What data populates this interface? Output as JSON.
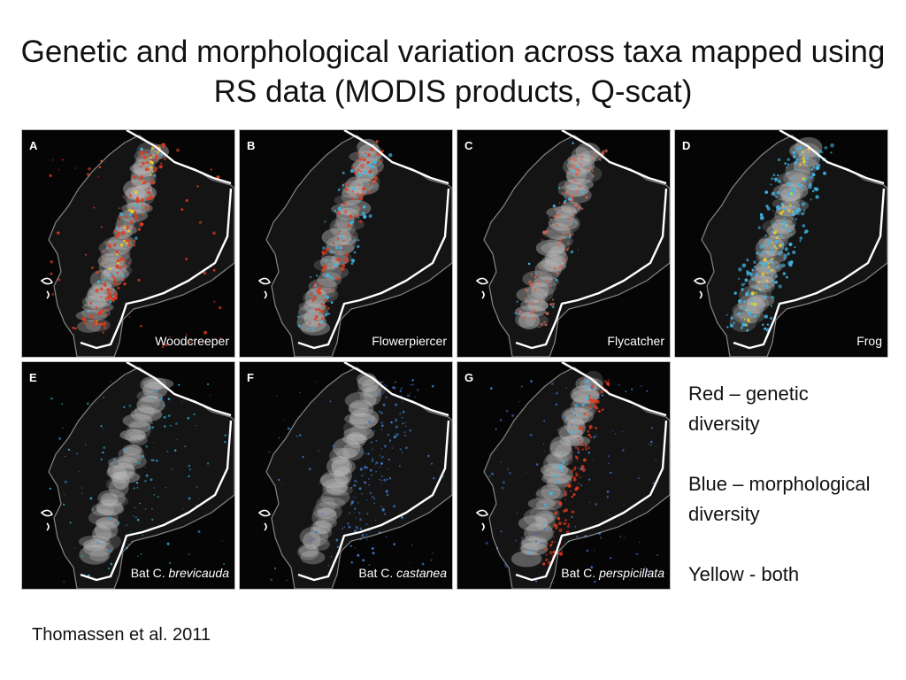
{
  "title": "Genetic and morphological variation across taxa mapped using RS data (MODIS products, Q-scat)",
  "colors": {
    "genetic": "#e23a1c",
    "morphological": "#3fb7e6",
    "both": "#f2d21a",
    "background": "#050505",
    "andes": "#bdbdbd"
  },
  "panels": [
    {
      "letter": "A",
      "label": "Woodcreeper",
      "label_prefix": "",
      "label_species": "",
      "highlight": "red"
    },
    {
      "letter": "B",
      "label": "Flowerpiercer",
      "label_prefix": "",
      "label_species": "",
      "highlight": "red-blue"
    },
    {
      "letter": "C",
      "label": "Flycatcher",
      "label_prefix": "",
      "label_species": "",
      "highlight": "red-light"
    },
    {
      "letter": "D",
      "label": "Frog",
      "label_prefix": "",
      "label_species": "",
      "highlight": "blue-yellow"
    },
    {
      "letter": "E",
      "label": "",
      "label_prefix": "Bat C.",
      "label_species": "brevicauda",
      "highlight": "blue-sparse"
    },
    {
      "letter": "F",
      "label": "",
      "label_prefix": "Bat C.",
      "label_species": "castanea",
      "highlight": "blue-medium"
    },
    {
      "letter": "G",
      "label": "",
      "label_prefix": "Bat C.",
      "label_species": "perspicillata",
      "highlight": "red-blue-east"
    }
  ],
  "legend": {
    "red": "Red – genetic diversity",
    "blue": "Blue – morphological diversity",
    "yellow": "Yellow - both"
  },
  "citation": "Thomassen et al. 2011"
}
